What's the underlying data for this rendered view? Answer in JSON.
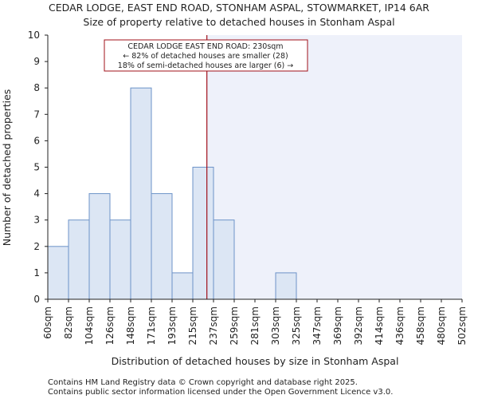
{
  "chart_data": {
    "type": "bar",
    "title": "CEDAR LODGE, EAST END ROAD, STONHAM ASPAL, STOWMARKET, IP14 6AR",
    "subtitle": "Size of property relative to detached houses in Stonham Aspal",
    "xlabel": "Distribution of detached houses by size in Stonham Aspal",
    "ylabel": "Number of detached properties",
    "tick_labels": [
      "60sqm",
      "82sqm",
      "104sqm",
      "126sqm",
      "148sqm",
      "171sqm",
      "193sqm",
      "215sqm",
      "237sqm",
      "259sqm",
      "281sqm",
      "303sqm",
      "325sqm",
      "347sqm",
      "369sqm",
      "392sqm",
      "414sqm",
      "436sqm",
      "458sqm",
      "480sqm",
      "502sqm"
    ],
    "values": [
      2,
      3,
      4,
      3,
      8,
      4,
      1,
      5,
      3,
      0,
      0,
      1,
      0,
      0,
      0,
      0,
      0,
      0,
      0,
      0
    ],
    "ylim": [
      0,
      10
    ],
    "yticks": [
      0,
      1,
      2,
      3,
      4,
      5,
      6,
      7,
      8,
      9,
      10
    ],
    "marker": {
      "value_sqm": 230,
      "bin_index": 7,
      "bin_fraction": 0.68
    },
    "annotation": [
      "CEDAR LODGE EAST END ROAD: 230sqm",
      "← 82% of detached houses are smaller (28)",
      "18% of semi-detached houses are larger (6) →"
    ],
    "colors": {
      "bar_fill": "#dce6f4",
      "bar_stroke": "#6d93c8",
      "shade": "#eef1fa",
      "marker": "#a0101a",
      "axis": "#222222"
    }
  },
  "footer": {
    "line1": "Contains HM Land Registry data © Crown copyright and database right 2025.",
    "line2": "Contains public sector information licensed under the Open Government Licence v3.0."
  }
}
